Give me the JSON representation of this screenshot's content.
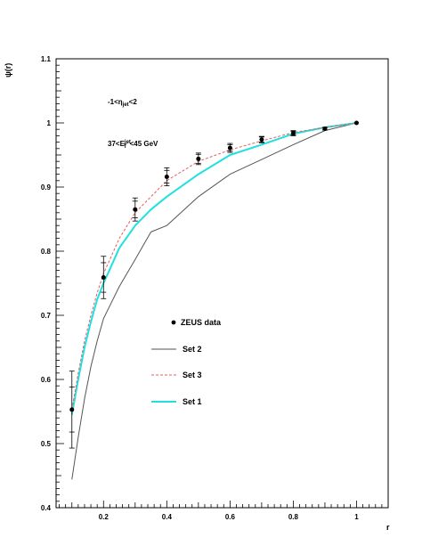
{
  "chart_data": {
    "type": "line",
    "ylabel": "ψ(r)",
    "xlabel": "r",
    "xlim": [
      0.05,
      1.1
    ],
    "ylim": [
      0.4,
      1.1
    ],
    "xticks": [
      0.2,
      0.4,
      0.6,
      0.8,
      1
    ],
    "yticks": [
      0.4,
      0.5,
      0.6,
      0.7,
      0.8,
      0.9,
      1,
      1.1
    ],
    "xtick_labels": [
      "0.2",
      "0.4",
      "0.6",
      "0.8",
      "1"
    ],
    "ytick_labels": [
      "0.4",
      "0.5",
      "0.6",
      "0.7",
      "0.8",
      "0.9",
      "1",
      "1.1"
    ],
    "annotations": {
      "eta_range": {
        "prefix": "-1<η",
        "sub": "jet",
        "suffix": "<2"
      },
      "et_range": {
        "prefix": "37<E",
        "sup": "jet",
        "sub": "T",
        "suffix": "<45 GeV"
      }
    },
    "legend_position": "center",
    "series": [
      {
        "name": "ZEUS data",
        "kind": "points",
        "color": "#000000",
        "x": [
          0.1,
          0.2,
          0.3,
          0.4,
          0.5,
          0.6,
          0.7,
          0.8,
          0.9,
          1.0
        ],
        "y": [
          0.553,
          0.759,
          0.865,
          0.916,
          0.944,
          0.961,
          0.974,
          0.984,
          0.991,
          1.0
        ],
        "err_stat": [
          0.035,
          0.023,
          0.013,
          0.01,
          0.007,
          0.005,
          0.004,
          0.003,
          0.002,
          0.0
        ],
        "err_tot": [
          0.06,
          0.033,
          0.018,
          0.014,
          0.009,
          0.007,
          0.005,
          0.004,
          0.002,
          0.0
        ]
      },
      {
        "name": "Set 2",
        "kind": "line",
        "color": "#555555",
        "dash": "solid",
        "x": [
          0.1,
          0.12,
          0.14,
          0.16,
          0.18,
          0.2,
          0.22,
          0.25,
          0.3,
          0.35,
          0.4,
          0.5,
          0.6,
          0.7,
          0.8,
          0.9,
          1.0
        ],
        "y": [
          0.444,
          0.51,
          0.57,
          0.62,
          0.66,
          0.695,
          0.715,
          0.745,
          0.787,
          0.83,
          0.84,
          0.885,
          0.92,
          0.943,
          0.966,
          0.988,
          1.0
        ]
      },
      {
        "name": "Set 3",
        "kind": "line",
        "color": "#e06060",
        "dash": "dashed",
        "x": [
          0.1,
          0.12,
          0.14,
          0.16,
          0.18,
          0.2,
          0.25,
          0.3,
          0.35,
          0.4,
          0.5,
          0.6,
          0.7,
          0.8,
          0.9,
          1.0
        ],
        "y": [
          0.553,
          0.61,
          0.66,
          0.7,
          0.735,
          0.765,
          0.82,
          0.86,
          0.885,
          0.91,
          0.94,
          0.958,
          0.972,
          0.985,
          0.993,
          1.0
        ]
      },
      {
        "name": "Set 1",
        "kind": "line",
        "color": "#20e0e0",
        "dash": "solid",
        "x": [
          0.1,
          0.12,
          0.14,
          0.16,
          0.18,
          0.2,
          0.25,
          0.3,
          0.35,
          0.4,
          0.5,
          0.6,
          0.7,
          0.8,
          0.9,
          1.0
        ],
        "y": [
          0.545,
          0.6,
          0.65,
          0.69,
          0.725,
          0.75,
          0.805,
          0.84,
          0.865,
          0.885,
          0.92,
          0.95,
          0.966,
          0.983,
          0.993,
          1.0
        ]
      }
    ]
  }
}
